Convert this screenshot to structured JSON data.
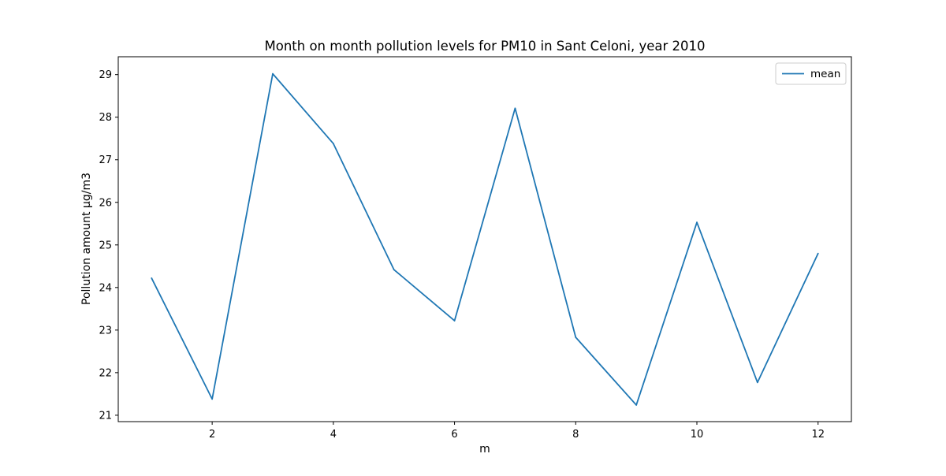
{
  "chart_data": {
    "type": "line",
    "title": "Month on month pollution levels for PM10 in Sant Celoni, year 2010",
    "xlabel": "m",
    "ylabel": "Pollution amount µg/m3",
    "x": [
      1,
      2,
      3,
      4,
      5,
      6,
      7,
      8,
      9,
      10,
      11,
      12
    ],
    "series": [
      {
        "name": "mean",
        "color": "#1f77b4",
        "values": [
          24.22,
          21.38,
          29.02,
          27.38,
          24.42,
          23.22,
          28.21,
          22.83,
          21.24,
          25.53,
          21.77,
          24.8
        ]
      }
    ],
    "xlim": [
      0.45,
      12.55
    ],
    "ylim": [
      20.85,
      29.42
    ],
    "xticks": [
      2,
      4,
      6,
      8,
      10,
      12
    ],
    "yticks": [
      21,
      22,
      23,
      24,
      25,
      26,
      27,
      28,
      29
    ],
    "grid": false,
    "legend_position": "top-right"
  }
}
